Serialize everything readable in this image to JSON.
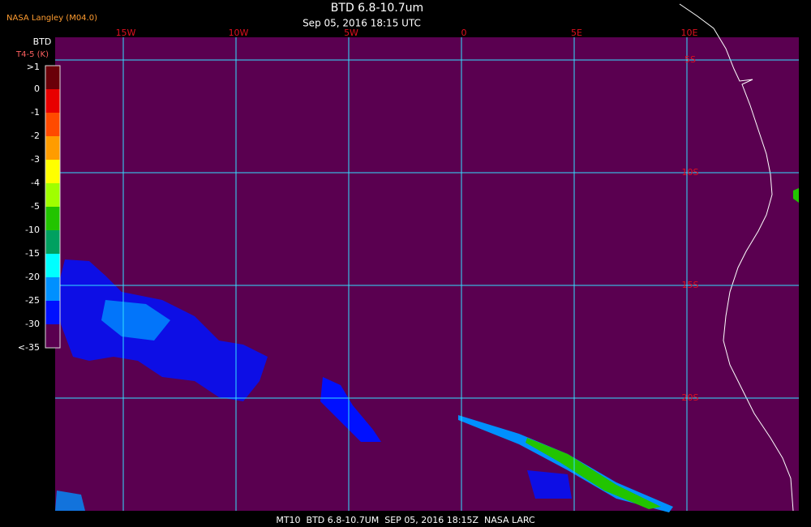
{
  "header": {
    "source": "NASA Langley (M04.0)",
    "title": "BTD 6.8-10.7um",
    "subtitle": "Sep 05, 2016 18:15 UTC"
  },
  "legend": {
    "title": "BTD",
    "unit": "T4-5 (K)",
    "labels": [
      ">1",
      "0",
      "-1",
      "-2",
      "-3",
      "-4",
      "-5",
      "-10",
      "-15",
      "-20",
      "-25",
      "-30",
      "<-35"
    ],
    "colors": [
      "#6a0008",
      "#e80000",
      "#ff4a00",
      "#ff9c00",
      "#ffff00",
      "#a0ff00",
      "#22c400",
      "#00a060",
      "#00ffff",
      "#0090ff",
      "#0010ff",
      "#5a0050"
    ]
  },
  "map": {
    "lon_labels": [
      "15W",
      "10W",
      "5W",
      "0",
      "5E",
      "10E"
    ],
    "lat_labels": [
      "5S",
      "10S",
      "15S",
      "20S"
    ]
  },
  "footer": "MT10  BTD 6.8-10.7UM  SEP 05, 2016 18:15Z  NASA LARC"
}
